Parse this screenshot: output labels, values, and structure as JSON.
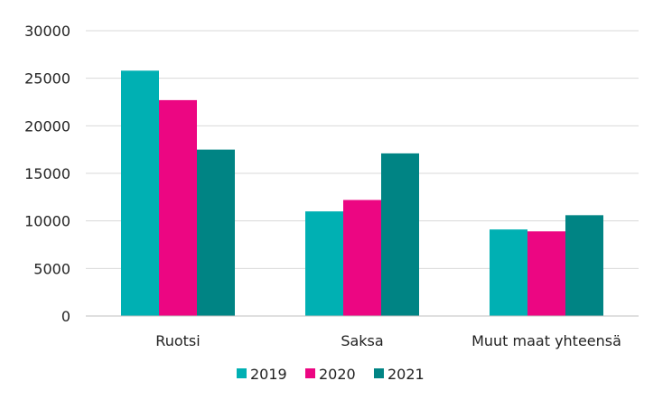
{
  "chart_data": {
    "type": "bar",
    "categories": [
      "Ruotsi",
      "Saksa",
      "Muut maat yhteensä"
    ],
    "series": [
      {
        "name": "2019",
        "color": "#00B0B3",
        "values": [
          25800,
          11000,
          9100
        ]
      },
      {
        "name": "2020",
        "color": "#EC0682",
        "values": [
          22700,
          12200,
          8900
        ]
      },
      {
        "name": "2021",
        "color": "#008484",
        "values": [
          17500,
          17100,
          10600
        ]
      }
    ],
    "ylim": [
      0,
      30000
    ],
    "yticks": [
      0,
      5000,
      10000,
      15000,
      20000,
      25000,
      30000
    ],
    "grid": true,
    "legend_position": "bottom"
  }
}
